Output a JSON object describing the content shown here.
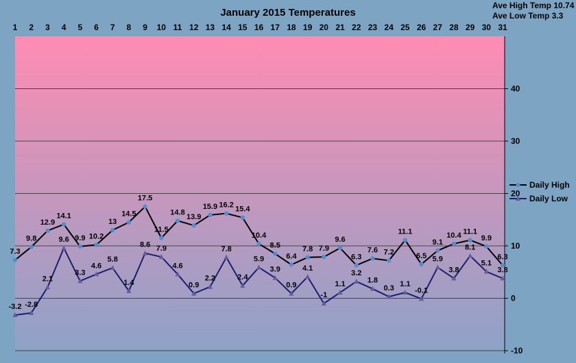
{
  "colors": {
    "background": "#7ea4c4",
    "plot_top": "#ff8cb2",
    "plot_bottom": "#8ea2c8",
    "gridline": "#444444",
    "high_line": "#000000",
    "high_marker": "#4f8fd0",
    "low_line": "#17206e",
    "low_marker": "#6a5a9a"
  },
  "averages": {
    "high_text": "Ave High Temp 10.74",
    "low_text": "Ave Low Temp 3.3"
  },
  "chart_data": {
    "type": "line",
    "title": "January 2015 Temperatures",
    "xlabel": "",
    "ylabel": "",
    "x": [
      1,
      2,
      3,
      4,
      5,
      6,
      7,
      8,
      9,
      10,
      11,
      12,
      13,
      14,
      15,
      16,
      17,
      18,
      19,
      20,
      21,
      22,
      23,
      24,
      25,
      26,
      27,
      28,
      29,
      30,
      31
    ],
    "x_axis_position": "top",
    "y_axis_position": "right",
    "ylim": [
      -10,
      50
    ],
    "yticks": [
      -10,
      0,
      10,
      20,
      30,
      40
    ],
    "grid": true,
    "legend_position": "right",
    "series": [
      {
        "name": "Daily High",
        "marker": "circle",
        "values": [
          7.3,
          9.8,
          12.9,
          14.1,
          9.9,
          10.2,
          13,
          14.5,
          17.5,
          11.5,
          14.8,
          13.9,
          15.9,
          16.2,
          15.4,
          10.4,
          8.5,
          6.4,
          7.8,
          7.9,
          9.6,
          6.3,
          7.6,
          7.2,
          11.1,
          6.5,
          9.1,
          10.4,
          11.1,
          9.9,
          6.3
        ],
        "labels": [
          "7.3",
          "9.8",
          "12.9",
          "14.1",
          "9.9",
          "10.2",
          "13",
          "14.5",
          "17.5",
          "11.5",
          "14.8",
          "13.9",
          "15.9",
          "16.2",
          "15.4",
          "10.4",
          "8.5",
          "6.4",
          "7.8",
          "7.9",
          "9.6",
          "6.3",
          "7.6",
          "7.2",
          "11.1",
          "6.5",
          "9.1",
          "10.4",
          "11.1",
          "9.9",
          "6.3"
        ]
      },
      {
        "name": "Daily Low",
        "marker": "triangle",
        "values": [
          -3.2,
          -2.8,
          2.1,
          9.6,
          3.3,
          4.6,
          5.8,
          1.4,
          8.6,
          7.9,
          4.6,
          0.9,
          2.2,
          7.8,
          2.4,
          5.9,
          3.9,
          0.9,
          4.1,
          -1,
          1.1,
          3.2,
          1.8,
          0.3,
          1.1,
          -0.1,
          5.9,
          3.8,
          8.1,
          5.1,
          3.8
        ],
        "labels": [
          "-3.2",
          "-2.8",
          "2.1",
          "9.6",
          "3.3",
          "4.6",
          "5.8",
          "1.4",
          "8.6",
          "7.9",
          "4.6",
          "0.9",
          "2.2",
          "7.8",
          "2.4",
          "5.9",
          "3.9",
          "0.9",
          "4.1",
          "-1",
          "1.1",
          "3.2",
          "1.8",
          "0.3",
          "1.1",
          "-0.1",
          "5.9",
          "3.8",
          "8.1",
          "5.1",
          "3.8"
        ]
      }
    ]
  }
}
